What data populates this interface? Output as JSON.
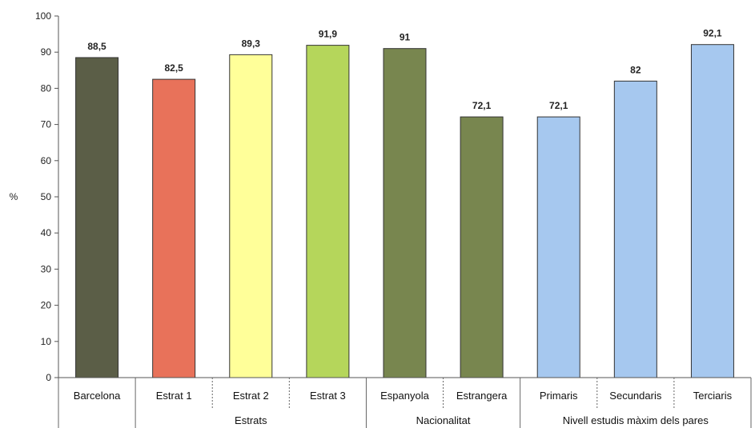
{
  "chart_data": {
    "type": "bar",
    "ylabel": "%",
    "ylim": [
      0,
      100
    ],
    "yticks": [
      0,
      10,
      20,
      30,
      40,
      50,
      60,
      70,
      80,
      90,
      100
    ],
    "grid": false,
    "categories": [
      "Barcelona",
      "Estrat 1",
      "Estrat 2",
      "Estrat 3",
      "Espanyola",
      "Estrangera",
      "Primaris",
      "Secundaris",
      "Terciaris"
    ],
    "values": [
      88.5,
      82.5,
      89.3,
      91.9,
      91,
      72.1,
      72.1,
      82,
      92.1
    ],
    "value_labels": [
      "88,5",
      "82,5",
      "89,3",
      "91,9",
      "91",
      "72,1",
      "72,1",
      "82",
      "92,1"
    ],
    "bar_colors": [
      "#5b5e47",
      "#e8725a",
      "#ffff99",
      "#b5d65b",
      "#78864f",
      "#78864f",
      "#a6c8ef",
      "#a6c8ef",
      "#a6c8ef"
    ],
    "groups": [
      {
        "label": "",
        "start": 0,
        "end": 0
      },
      {
        "label": "Estrats",
        "start": 1,
        "end": 3
      },
      {
        "label": "Nacionalitat",
        "start": 4,
        "end": 5
      },
      {
        "label": "Nivell estudis màxim dels pares",
        "start": 6,
        "end": 8
      }
    ]
  }
}
